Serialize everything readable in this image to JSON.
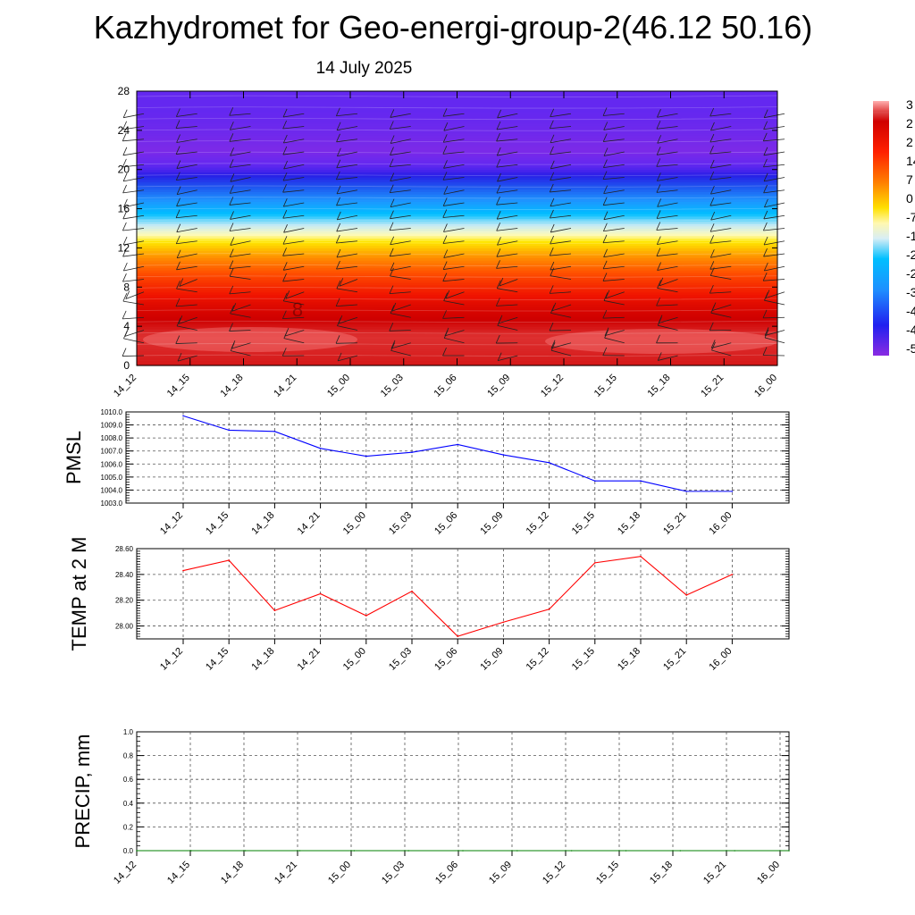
{
  "title": "Kazhydromet for Geo-energi-group-2(46.12 50.16)",
  "date": "14 July 2025",
  "chart_data": [
    {
      "type": "heatmap",
      "ylim": [
        0,
        28
      ],
      "y_ticks": [
        "0",
        "4",
        "8",
        "12",
        "16",
        "20",
        "24",
        "28"
      ],
      "x_ticks": [
        "14_12",
        "14_15",
        "14_18",
        "14_21",
        "15_00",
        "15_03",
        "15_06",
        "15_09",
        "15_12",
        "15_15",
        "15_18",
        "15_21",
        "16_00"
      ],
      "colorbar_labels": [
        "3",
        "2",
        "2",
        "14",
        "7",
        "0",
        "-7",
        "-1",
        "-2",
        "-2",
        "-3",
        "-4",
        "-4",
        "-5"
      ],
      "contour_label": "8",
      "profile": [
        {
          "y": 0,
          "value": 27
        },
        {
          "y": 3,
          "value": 29
        },
        {
          "y": 6,
          "value": 22
        },
        {
          "y": 9,
          "value": 12
        },
        {
          "y": 11,
          "value": 4
        },
        {
          "y": 13,
          "value": -7
        },
        {
          "y": 14,
          "value": -13
        },
        {
          "y": 16,
          "value": -25
        },
        {
          "y": 18,
          "value": -37
        },
        {
          "y": 20,
          "value": -48
        },
        {
          "y": 22,
          "value": -55
        },
        {
          "y": 24,
          "value": -52
        },
        {
          "y": 26,
          "value": -50
        },
        {
          "y": 28,
          "value": -50
        }
      ],
      "grid": false
    },
    {
      "type": "line",
      "ylabel": "PMSL",
      "ylim": [
        1003.0,
        1010.0
      ],
      "y_ticks": [
        "1003.0",
        "1004.0",
        "1005.0",
        "1006.0",
        "1007.0",
        "1008.0",
        "1009.0",
        "1010.0"
      ],
      "categories": [
        "14_12",
        "14_15",
        "14_18",
        "14_21",
        "15_00",
        "15_03",
        "15_06",
        "15_09",
        "15_12",
        "15_15",
        "15_18",
        "15_21",
        "16_00"
      ],
      "series": [
        {
          "color": "#0000ff",
          "values": [
            1009.7,
            1008.6,
            1008.5,
            1007.2,
            1006.6,
            1006.9,
            1007.5,
            1006.7,
            1006.1,
            1004.7,
            1004.7,
            1003.9,
            1003.9
          ]
        }
      ],
      "grid": true
    },
    {
      "type": "line",
      "ylabel": "TEMP at 2 M",
      "ylim": [
        27.9,
        28.6
      ],
      "y_ticks": [
        "28.00",
        "28.20",
        "28.40",
        "28.60"
      ],
      "categories": [
        "14_12",
        "14_15",
        "14_18",
        "14_21",
        "15_00",
        "15_03",
        "15_06",
        "15_09",
        "15_12",
        "15_15",
        "15_18",
        "15_21",
        "16_00"
      ],
      "series": [
        {
          "color": "#ff0000",
          "values": [
            28.43,
            28.51,
            28.12,
            28.25,
            28.08,
            28.27,
            27.92,
            28.03,
            28.13,
            28.49,
            28.54,
            28.24,
            28.4
          ]
        }
      ],
      "grid": true
    },
    {
      "type": "line",
      "ylabel": "PRECIP, mm",
      "ylim": [
        0.0,
        1.0
      ],
      "y_ticks": [
        "0.0",
        "0.2",
        "0.4",
        "0.6",
        "0.8",
        "1.0"
      ],
      "x_ticks": [
        "14_12",
        "14_15",
        "14_18",
        "14_21",
        "15_00",
        "15_03",
        "15_06",
        "15_09",
        "15_12",
        "15_15",
        "15_18",
        "15_21",
        "16_00"
      ],
      "series": [
        {
          "color": "#008000",
          "values": [
            0,
            0,
            0,
            0,
            0,
            0,
            0,
            0,
            0,
            0,
            0,
            0,
            0
          ]
        }
      ],
      "grid": true
    }
  ]
}
